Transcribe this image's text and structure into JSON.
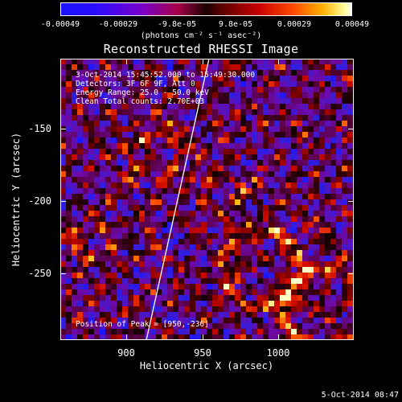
{
  "colorbar": {
    "ticks": [
      "-0.00049",
      "-0.00029",
      "-9.8e-05",
      "9.8e-05",
      "0.00029",
      "0.00049"
    ],
    "units": "(photons cm⁻² s⁻¹ asec⁻²)"
  },
  "plot": {
    "title": "Reconstructed RHESSI Image",
    "info": [
      "3-Oct-2014 15:45:52.000 to 15:49:30.000",
      "Detectors: 3F 6F 9F, Att 0",
      "Energy Range: 25.0 - 50.0 keV",
      "Clean    Total counts: 2.70E+03"
    ],
    "peak": "Position of Peak = [950,-236]",
    "xlabel": "Heliocentric X (arcsec)",
    "ylabel": "Heliocentric Y (arcsec)",
    "xticks": [
      "900",
      "950",
      "1000"
    ],
    "yticks": [
      "-150",
      "-200",
      "-250"
    ]
  },
  "timestamp": "5-Oct-2014 08:47",
  "colors": {
    "background": "#000000",
    "foreground": "#ffffff"
  }
}
